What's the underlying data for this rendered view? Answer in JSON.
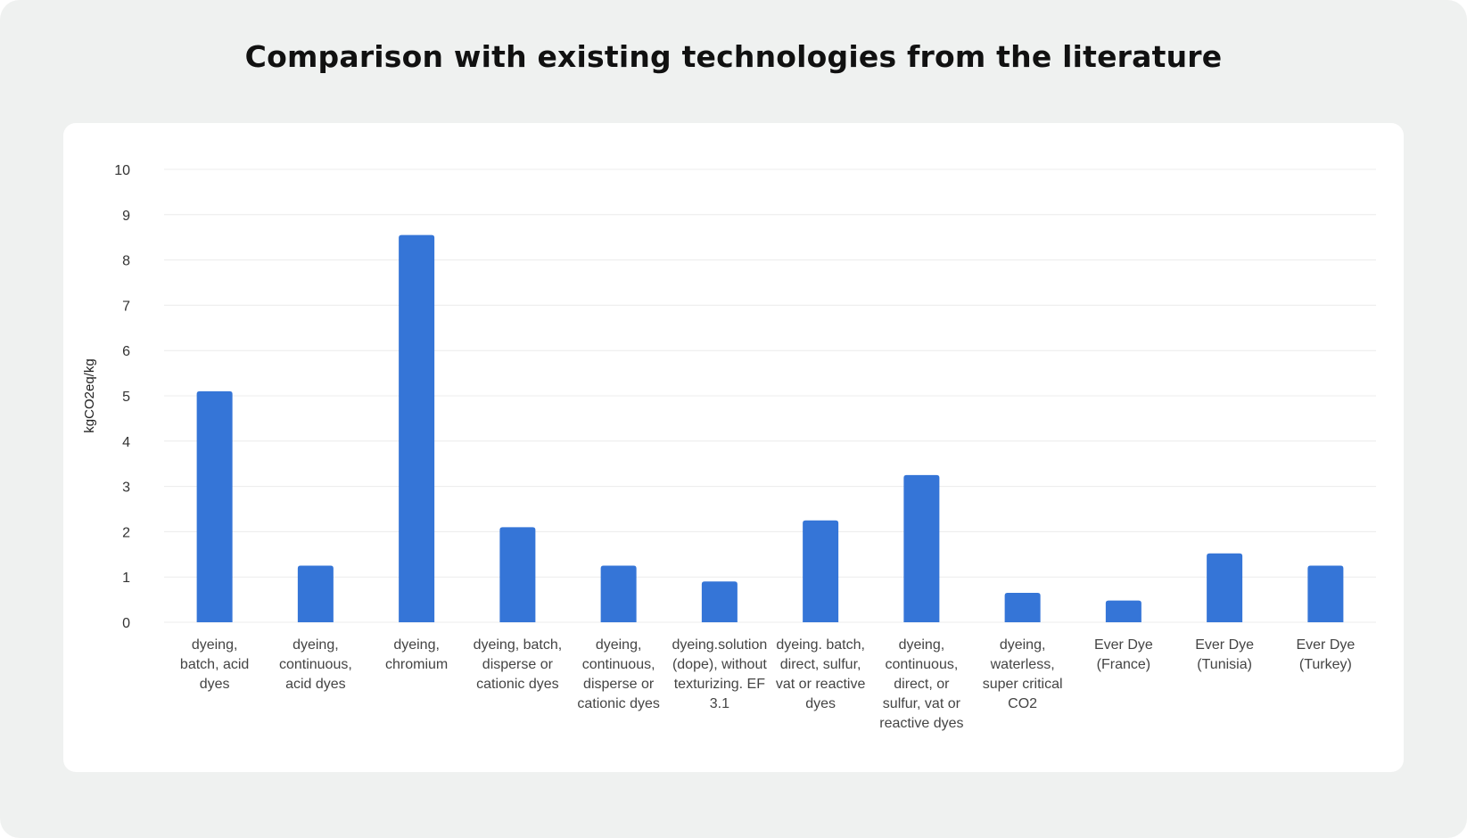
{
  "page": {
    "title": "Comparison with existing technologies from the literature"
  },
  "colors": {
    "background": "#eff1f0",
    "card": "#ffffff",
    "bar": "#3575d7",
    "grid": "#ececec"
  },
  "chart_data": {
    "type": "bar",
    "title": "Comparison with existing technologies from the literature",
    "xlabel": "",
    "ylabel": "kgCO2eq/kg",
    "ylim": [
      0,
      10
    ],
    "yticks": [
      0,
      1,
      2,
      3,
      4,
      5,
      6,
      7,
      8,
      9,
      10
    ],
    "grid": true,
    "legend": "none",
    "categories": [
      [
        "dyeing,",
        "batch, acid",
        "dyes"
      ],
      [
        "dyeing,",
        "continuous,",
        "acid dyes"
      ],
      [
        "dyeing,",
        "chromium"
      ],
      [
        "dyeing, batch,",
        "disperse or",
        "cationic dyes"
      ],
      [
        "dyeing,",
        "continuous,",
        "disperse or",
        "cationic dyes"
      ],
      [
        "dyeing.solution",
        "(dope), without",
        "texturizing. EF",
        "3.1"
      ],
      [
        "dyeing. batch,",
        "direct, sulfur,",
        "vat or reactive",
        "dyes"
      ],
      [
        "dyeing,",
        "continuous,",
        "direct, or",
        "sulfur, vat or",
        "reactive dyes"
      ],
      [
        "dyeing,",
        "waterless,",
        "super critical",
        "CO2"
      ],
      [
        "Ever Dye",
        "(France)"
      ],
      [
        "Ever Dye",
        "(Tunisia)"
      ],
      [
        "Ever Dye",
        "(Turkey)"
      ]
    ],
    "values": [
      5.1,
      1.25,
      8.55,
      2.1,
      1.25,
      0.9,
      2.25,
      3.25,
      0.65,
      0.48,
      1.52,
      1.25
    ]
  }
}
